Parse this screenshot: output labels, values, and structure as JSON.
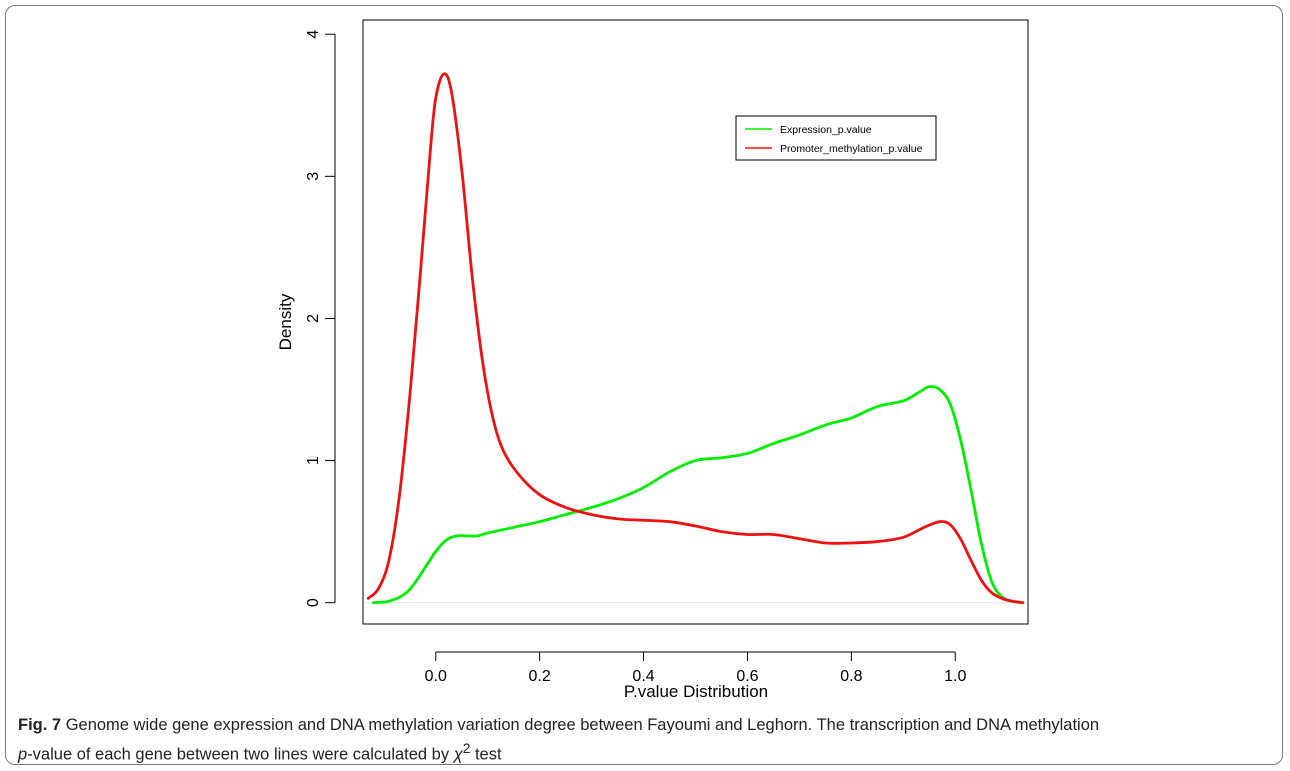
{
  "figure": {
    "label": "Fig. 7",
    "caption_line1": "Genome wide gene expression and DNA methylation variation degree between Fayoumi and Leghorn. The transcription and DNA methylation",
    "caption_pre_italic": "p",
    "caption_mid": "-value of each gene between two lines were calculated by ",
    "caption_chi": "χ",
    "caption_sup": "2",
    "caption_end": " test"
  },
  "chart_data": {
    "type": "line",
    "xlabel": "P.value Distribution",
    "ylabel": "Density",
    "xlim": [
      -0.14,
      1.14
    ],
    "ylim": [
      -0.15,
      4.1
    ],
    "x_ticks": [
      0.0,
      0.2,
      0.4,
      0.6,
      0.8,
      1.0
    ],
    "x_tick_labels": [
      "0.0",
      "0.2",
      "0.4",
      "0.6",
      "0.8",
      "1.0"
    ],
    "y_ticks": [
      0,
      1,
      2,
      3,
      4
    ],
    "y_tick_labels": [
      "0",
      "1",
      "2",
      "3",
      "4"
    ],
    "legend_position": "top-right",
    "grid": false,
    "series": [
      {
        "name": "Expression_p.value",
        "color": "#00ee00",
        "points": [
          [
            -0.12,
            0.0
          ],
          [
            -0.09,
            0.01
          ],
          [
            -0.06,
            0.06
          ],
          [
            -0.04,
            0.14
          ],
          [
            -0.02,
            0.25
          ],
          [
            0.0,
            0.36
          ],
          [
            0.02,
            0.44
          ],
          [
            0.04,
            0.47
          ],
          [
            0.06,
            0.47
          ],
          [
            0.08,
            0.47
          ],
          [
            0.1,
            0.49
          ],
          [
            0.15,
            0.53
          ],
          [
            0.2,
            0.57
          ],
          [
            0.25,
            0.62
          ],
          [
            0.3,
            0.67
          ],
          [
            0.35,
            0.73
          ],
          [
            0.4,
            0.81
          ],
          [
            0.45,
            0.92
          ],
          [
            0.5,
            1.0
          ],
          [
            0.55,
            1.02
          ],
          [
            0.6,
            1.05
          ],
          [
            0.65,
            1.12
          ],
          [
            0.7,
            1.18
          ],
          [
            0.75,
            1.25
          ],
          [
            0.8,
            1.3
          ],
          [
            0.85,
            1.38
          ],
          [
            0.9,
            1.42
          ],
          [
            0.93,
            1.48
          ],
          [
            0.95,
            1.52
          ],
          [
            0.97,
            1.5
          ],
          [
            0.99,
            1.4
          ],
          [
            1.01,
            1.15
          ],
          [
            1.03,
            0.8
          ],
          [
            1.05,
            0.42
          ],
          [
            1.07,
            0.15
          ],
          [
            1.09,
            0.04
          ],
          [
            1.11,
            0.01
          ],
          [
            1.13,
            0.0
          ]
        ]
      },
      {
        "name": "Promoter_methylation_p.value",
        "color": "#ee1111",
        "points": [
          [
            -0.13,
            0.03
          ],
          [
            -0.11,
            0.1
          ],
          [
            -0.09,
            0.3
          ],
          [
            -0.07,
            0.75
          ],
          [
            -0.05,
            1.45
          ],
          [
            -0.03,
            2.3
          ],
          [
            -0.01,
            3.2
          ],
          [
            0.0,
            3.55
          ],
          [
            0.015,
            3.72
          ],
          [
            0.03,
            3.6
          ],
          [
            0.05,
            3.05
          ],
          [
            0.07,
            2.3
          ],
          [
            0.09,
            1.7
          ],
          [
            0.11,
            1.3
          ],
          [
            0.13,
            1.07
          ],
          [
            0.16,
            0.9
          ],
          [
            0.2,
            0.76
          ],
          [
            0.25,
            0.67
          ],
          [
            0.3,
            0.62
          ],
          [
            0.35,
            0.59
          ],
          [
            0.4,
            0.58
          ],
          [
            0.45,
            0.57
          ],
          [
            0.5,
            0.54
          ],
          [
            0.55,
            0.5
          ],
          [
            0.6,
            0.48
          ],
          [
            0.65,
            0.48
          ],
          [
            0.7,
            0.45
          ],
          [
            0.75,
            0.42
          ],
          [
            0.8,
            0.42
          ],
          [
            0.85,
            0.43
          ],
          [
            0.9,
            0.46
          ],
          [
            0.94,
            0.53
          ],
          [
            0.97,
            0.57
          ],
          [
            0.99,
            0.55
          ],
          [
            1.01,
            0.45
          ],
          [
            1.03,
            0.3
          ],
          [
            1.05,
            0.16
          ],
          [
            1.07,
            0.07
          ],
          [
            1.09,
            0.03
          ],
          [
            1.11,
            0.01
          ],
          [
            1.13,
            0.0
          ]
        ]
      }
    ]
  }
}
